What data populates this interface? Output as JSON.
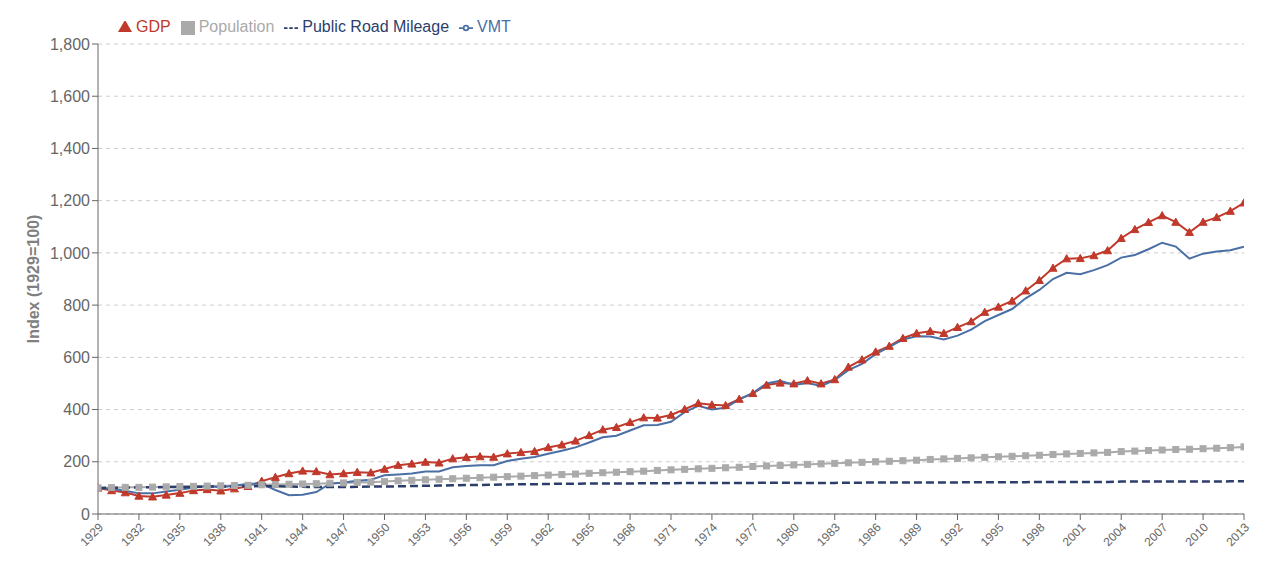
{
  "chart_data": {
    "type": "line",
    "y_label": "Index (1929=100)",
    "x": [
      1929,
      1930,
      1931,
      1932,
      1933,
      1934,
      1935,
      1936,
      1937,
      1938,
      1939,
      1940,
      1941,
      1942,
      1943,
      1944,
      1945,
      1946,
      1947,
      1948,
      1949,
      1950,
      1951,
      1952,
      1953,
      1954,
      1955,
      1956,
      1957,
      1958,
      1959,
      1960,
      1961,
      1962,
      1963,
      1964,
      1965,
      1966,
      1967,
      1968,
      1969,
      1970,
      1971,
      1972,
      1973,
      1974,
      1975,
      1976,
      1977,
      1978,
      1979,
      1980,
      1981,
      1982,
      1983,
      1984,
      1985,
      1986,
      1987,
      1988,
      1989,
      1990,
      1991,
      1992,
      1993,
      1994,
      1995,
      1996,
      1997,
      1998,
      1999,
      2000,
      2001,
      2002,
      2003,
      2004,
      2005,
      2006,
      2007,
      2008,
      2009,
      2010,
      2011,
      2012,
      2013
    ],
    "series": [
      {
        "name": "GDP",
        "color": "#c0392b",
        "marker": "triangle",
        "line_style": "solid",
        "values": [
          100,
          90,
          82,
          69,
          66,
          73,
          80,
          90,
          94,
          89,
          97,
          106,
          126,
          141,
          155,
          165,
          163,
          151,
          155,
          160,
          158,
          172,
          187,
          192,
          199,
          196,
          212,
          217,
          220,
          218,
          231,
          236,
          240,
          255,
          265,
          280,
          301,
          323,
          332,
          351,
          369,
          368,
          379,
          401,
          424,
          418,
          416,
          440,
          462,
          494,
          502,
          499,
          511,
          499,
          515,
          563,
          591,
          621,
          643,
          673,
          692,
          700,
          692,
          715,
          737,
          773,
          793,
          816,
          855,
          895,
          942,
          978,
          979,
          990,
          1009,
          1056,
          1090,
          1117,
          1143,
          1118,
          1079,
          1118,
          1136,
          1160,
          1192
        ]
      },
      {
        "name": "Population",
        "color": "#aaaaaa",
        "marker": "square",
        "line_style": "solid",
        "values": [
          100,
          101,
          102,
          102,
          103,
          104,
          105,
          106,
          107,
          108,
          109,
          110,
          112,
          113,
          114,
          115,
          116,
          118,
          119,
          121,
          122,
          124,
          127,
          129,
          131,
          133,
          135,
          137,
          139,
          141,
          143,
          145,
          147,
          149,
          151,
          153,
          156,
          158,
          160,
          162,
          164,
          167,
          169,
          171,
          173,
          175,
          177,
          179,
          182,
          184,
          186,
          188,
          190,
          192,
          194,
          196,
          198,
          200,
          202,
          204,
          206,
          209,
          211,
          213,
          215,
          217,
          219,
          221,
          223,
          225,
          228,
          230,
          232,
          234,
          236,
          239,
          241,
          243,
          245,
          247,
          248,
          250,
          252,
          254,
          257
        ]
      },
      {
        "name": "VMT",
        "color": "#4a6fa5",
        "marker": "none",
        "line_style": "solid",
        "values": [
          100,
          97,
          89,
          79,
          79,
          86,
          93,
          101,
          106,
          102,
          108,
          116,
          116,
          92,
          72,
          74,
          84,
          116,
          121,
          127,
          131,
          148,
          151,
          155,
          163,
          163,
          179,
          184,
          187,
          187,
          203,
          212,
          218,
          231,
          242,
          255,
          274,
          294,
          300,
          320,
          340,
          341,
          353,
          390,
          414,
          400,
          407,
          439,
          463,
          500,
          510,
          494,
          502,
          490,
          513,
          551,
          575,
          612,
          640,
          668,
          681,
          680,
          668,
          683,
          706,
          739,
          762,
          785,
          826,
          858,
          900,
          924,
          918,
          934,
          953,
          982,
          992,
          1014,
          1039,
          1024,
          978,
          997,
          1005,
          1010,
          1024
        ]
      },
      {
        "name": "Public Road Mileage",
        "color": "#2c3e6b",
        "marker": "none",
        "line_style": "dashed",
        "values": [
          100,
          101,
          101,
          102,
          102,
          103,
          103,
          104,
          105,
          105,
          106,
          106,
          107,
          106,
          105,
          104,
          103,
          103,
          103,
          104,
          105,
          105,
          106,
          107,
          108,
          109,
          110,
          111,
          111,
          112,
          113,
          114,
          114,
          115,
          116,
          116,
          117,
          117,
          117,
          117,
          118,
          118,
          118,
          119,
          119,
          119,
          119,
          119,
          119,
          120,
          120,
          119,
          119,
          119,
          119,
          120,
          120,
          121,
          121,
          121,
          121,
          121,
          121,
          121,
          122,
          122,
          122,
          122,
          122,
          123,
          123,
          123,
          123,
          123,
          123,
          124,
          124,
          124,
          124,
          124,
          124,
          124,
          124,
          125,
          125
        ]
      }
    ],
    "xlim": [
      1929,
      2013
    ],
    "xticks": [
      1929,
      1932,
      1935,
      1938,
      1941,
      1944,
      1947,
      1950,
      1953,
      1956,
      1959,
      1962,
      1965,
      1968,
      1971,
      1974,
      1977,
      1980,
      1983,
      1986,
      1989,
      1992,
      1995,
      1998,
      2001,
      2004,
      2007,
      2010,
      2013
    ],
    "ylim": [
      0,
      1800
    ],
    "yticks": [
      0,
      200,
      400,
      600,
      800,
      {
        "value": 1000,
        "label": "1,000"
      },
      {
        "value": 1200,
        "label": "1,200"
      },
      {
        "value": 1400,
        "label": "1,400"
      },
      {
        "value": 1600,
        "label": "1,600"
      },
      {
        "value": 1800,
        "label": "1,800"
      }
    ],
    "grid": true,
    "legend": "upper left"
  }
}
